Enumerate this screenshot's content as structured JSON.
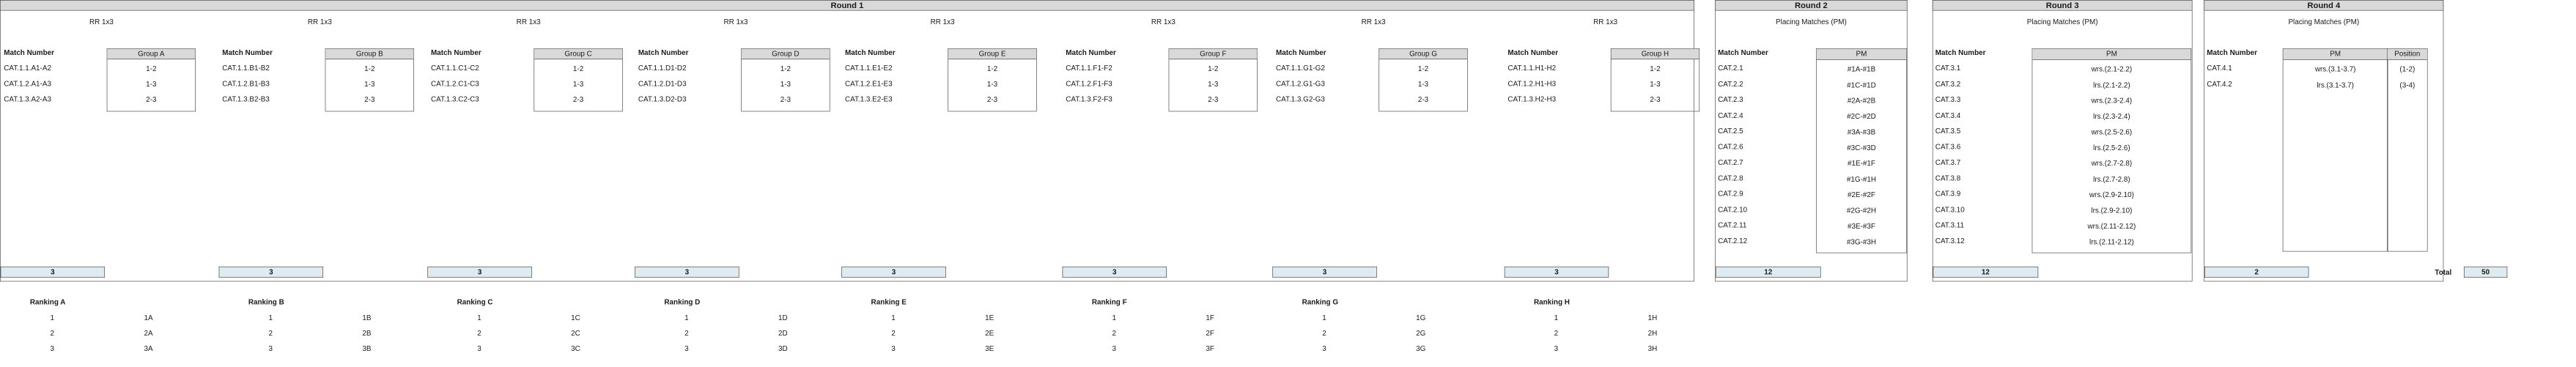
{
  "round1": {
    "title": "Round 1",
    "match_number_label": "Match Number",
    "ranking_label": "Ranking",
    "groups": [
      {
        "letter": "A",
        "rr": "RR 1x3",
        "group": "Group A",
        "matches": [
          "CAT.1.1.A1-A2",
          "CAT.1.2.A1-A3",
          "CAT.1.3.A2-A3"
        ],
        "pairs": [
          "1-2",
          "1-3",
          "2-3"
        ],
        "count": "3",
        "ranking": "Ranking A",
        "ranks": [
          [
            "1",
            "1A"
          ],
          [
            "2",
            "2A"
          ],
          [
            "3",
            "3A"
          ]
        ]
      },
      {
        "letter": "B",
        "rr": "RR 1x3",
        "group": "Group B",
        "matches": [
          "CAT.1.1.B1-B2",
          "CAT.1.2.B1-B3",
          "CAT.1.3.B2-B3"
        ],
        "pairs": [
          "1-2",
          "1-3",
          "2-3"
        ],
        "count": "3",
        "ranking": "Ranking B",
        "ranks": [
          [
            "1",
            "1B"
          ],
          [
            "2",
            "2B"
          ],
          [
            "3",
            "3B"
          ]
        ]
      },
      {
        "letter": "C",
        "rr": "RR 1x3",
        "group": "Group C",
        "matches": [
          "CAT.1.1.C1-C2",
          "CAT.1.2.C1-C3",
          "CAT.1.3.C2-C3"
        ],
        "pairs": [
          "1-2",
          "1-3",
          "2-3"
        ],
        "count": "3",
        "ranking": "Ranking C",
        "ranks": [
          [
            "1",
            "1C"
          ],
          [
            "2",
            "2C"
          ],
          [
            "3",
            "3C"
          ]
        ]
      },
      {
        "letter": "D",
        "rr": "RR 1x3",
        "group": "Group D",
        "matches": [
          "CAT.1.1.D1-D2",
          "CAT.1.2.D1-D3",
          "CAT.1.3.D2-D3"
        ],
        "pairs": [
          "1-2",
          "1-3",
          "2-3"
        ],
        "count": "3",
        "ranking": "Ranking D",
        "ranks": [
          [
            "1",
            "1D"
          ],
          [
            "2",
            "2D"
          ],
          [
            "3",
            "3D"
          ]
        ]
      },
      {
        "letter": "E",
        "rr": "RR 1x3",
        "group": "Group E",
        "matches": [
          "CAT.1.1.E1-E2",
          "CAT.1.2.E1-E3",
          "CAT.1.3.E2-E3"
        ],
        "pairs": [
          "1-2",
          "1-3",
          "2-3"
        ],
        "count": "3",
        "ranking": "Ranking E",
        "ranks": [
          [
            "1",
            "1E"
          ],
          [
            "2",
            "2E"
          ],
          [
            "3",
            "3E"
          ]
        ]
      },
      {
        "letter": "F",
        "rr": "RR 1x3",
        "group": "Group F",
        "matches": [
          "CAT.1.1.F1-F2",
          "CAT.1.2.F1-F3",
          "CAT.1.3.F2-F3"
        ],
        "pairs": [
          "1-2",
          "1-3",
          "2-3"
        ],
        "count": "3",
        "ranking": "Ranking F",
        "ranks": [
          [
            "1",
            "1F"
          ],
          [
            "2",
            "2F"
          ],
          [
            "3",
            "3F"
          ]
        ]
      },
      {
        "letter": "G",
        "rr": "RR 1x3",
        "group": "Group G",
        "matches": [
          "CAT.1.1.G1-G2",
          "CAT.1.2.G1-G3",
          "CAT.1.3.G2-G3"
        ],
        "pairs": [
          "1-2",
          "1-3",
          "2-3"
        ],
        "count": "3",
        "ranking": "Ranking G",
        "ranks": [
          [
            "1",
            "1G"
          ],
          [
            "2",
            "2G"
          ],
          [
            "3",
            "3G"
          ]
        ]
      },
      {
        "letter": "H",
        "rr": "RR 1x3",
        "group": "Group H",
        "matches": [
          "CAT.1.1.H1-H2",
          "CAT.1.2.H1-H3",
          "CAT.1.3.H2-H3"
        ],
        "pairs": [
          "1-2",
          "1-3",
          "2-3"
        ],
        "count": "3",
        "ranking": "Ranking H",
        "ranks": [
          [
            "1",
            "1H"
          ],
          [
            "2",
            "2H"
          ],
          [
            "3",
            "3H"
          ]
        ]
      }
    ]
  },
  "round2": {
    "title": "Round 2",
    "subtitle": "Placing Matches (PM)",
    "match_number_label": "Match Number",
    "pm_label": "PM",
    "rows": [
      [
        "CAT.2.1",
        "#1A-#1B"
      ],
      [
        "CAT.2.2",
        "#1C-#1D"
      ],
      [
        "CAT.2.3",
        "#2A-#2B"
      ],
      [
        "CAT.2.4",
        "#2C-#2D"
      ],
      [
        "CAT.2.5",
        "#3A-#3B"
      ],
      [
        "CAT.2.6",
        "#3C-#3D"
      ],
      [
        "CAT.2.7",
        "#1E-#1F"
      ],
      [
        "CAT.2.8",
        "#1G-#1H"
      ],
      [
        "CAT.2.9",
        "#2E-#2F"
      ],
      [
        "CAT.2.10",
        "#2G-#2H"
      ],
      [
        "CAT.2.11",
        "#3E-#3F"
      ],
      [
        "CAT.2.12",
        "#3G-#3H"
      ]
    ],
    "count": "12"
  },
  "round3": {
    "title": "Round 3",
    "subtitle": "Placing Matches (PM)",
    "match_number_label": "Match Number",
    "pm_label": "PM",
    "rows": [
      [
        "CAT.3.1",
        "wrs.(2.1-2.2)"
      ],
      [
        "CAT.3.2",
        "lrs.(2.1-2.2)"
      ],
      [
        "CAT.3.3",
        "wrs.(2.3-2.4)"
      ],
      [
        "CAT.3.4",
        "lrs.(2.3-2.4)"
      ],
      [
        "CAT.3.5",
        "wrs.(2.5-2.6)"
      ],
      [
        "CAT.3.6",
        "lrs.(2.5-2.6)"
      ],
      [
        "CAT.3.7",
        "wrs.(2.7-2.8)"
      ],
      [
        "CAT.3.8",
        "lrs.(2.7-2.8)"
      ],
      [
        "CAT.3.9",
        "wrs.(2.9-2.10)"
      ],
      [
        "CAT.3.10",
        "lrs.(2.9-2.10)"
      ],
      [
        "CAT.3.11",
        "wrs.(2.11-2.12)"
      ],
      [
        "CAT.3.12",
        "lrs.(2.11-2.12)"
      ]
    ],
    "count": "12"
  },
  "round4": {
    "title": "Round 4",
    "subtitle": "Placing Matches (PM)",
    "match_number_label": "Match Number",
    "pm_label": "PM",
    "position_label": "Position",
    "rows": [
      [
        "CAT.4.1",
        "wrs.(3.1-3.7)",
        "(1-2)"
      ],
      [
        "CAT.4.2",
        "lrs.(3.1-3.7)",
        "(3-4)"
      ]
    ],
    "count": "2"
  },
  "total": {
    "label": "Total",
    "value": "50"
  }
}
